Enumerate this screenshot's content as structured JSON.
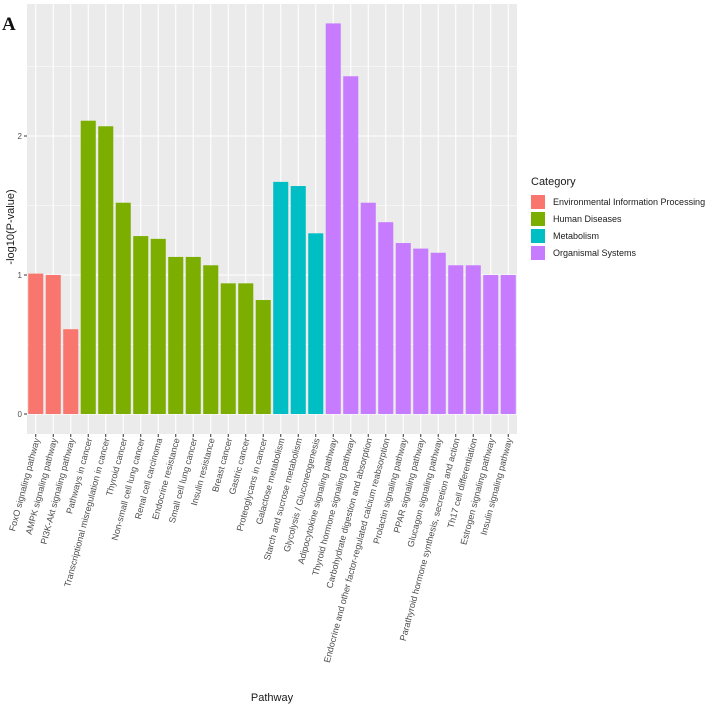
{
  "panel_label": "A",
  "colors": {
    "panel_bg": "#ebebeb",
    "grid": "#ffffff",
    "text": "#4d4d4d"
  },
  "legend": {
    "title": "Category",
    "items": [
      {
        "label": "Environmental Information Processing",
        "color": "#f8766d"
      },
      {
        "label": "Human Diseases",
        "color": "#7cae00"
      },
      {
        "label": "Metabolism",
        "color": "#00bfc4"
      },
      {
        "label": "Organismal Systems",
        "color": "#c77cff"
      }
    ]
  },
  "chart_data": {
    "type": "bar",
    "xlabel": "Pathway",
    "ylabel": "-log10(P-value)",
    "ylim": [
      0,
      2.9
    ],
    "yticks": [
      0,
      1,
      2
    ],
    "grid": true,
    "legend_position": "right",
    "categories": [
      "FoxO signaling pathway",
      "AMPK signaling pathway",
      "PI3K-Akt signaling pathway",
      "Pathways in cancer",
      "Transcriptional misregulation in cancer",
      "Thyroid cancer",
      "Non-small cell lung cancer",
      "Renal cell carcinoma",
      "Endocrine resistance",
      "Small cell lung cancer",
      "Insulin resistance",
      "Breast cancer",
      "Gastric cancer",
      "Proteoglycans in cancer",
      "Galactose metabolism",
      "Starch and sucrose metabolism",
      "Glycolysis / Gluconeogenesis",
      "Adipocytokine signaling pathway",
      "Thyroid hormone signaling pathway",
      "Carbohydrate digestion and absorption",
      "Endocrine and other factor-regulated calcium reabsorption",
      "Prolactin signaling pathway",
      "PPAR signaling pathway",
      "Glucagon signaling pathway",
      "Parathyroid hormone synthesis, secretion and action",
      "Th17 cell differentiation",
      "Estrogen signaling pathway",
      "Insulin signaling pathway"
    ],
    "values": [
      1.01,
      1.0,
      0.61,
      2.11,
      2.07,
      1.52,
      1.28,
      1.26,
      1.13,
      1.13,
      1.07,
      0.94,
      0.94,
      0.82,
      1.67,
      1.64,
      1.3,
      2.81,
      2.43,
      1.52,
      1.38,
      1.23,
      1.19,
      1.16,
      1.07,
      1.07,
      1.0,
      1.0
    ],
    "groups": [
      "Environmental Information Processing",
      "Environmental Information Processing",
      "Environmental Information Processing",
      "Human Diseases",
      "Human Diseases",
      "Human Diseases",
      "Human Diseases",
      "Human Diseases",
      "Human Diseases",
      "Human Diseases",
      "Human Diseases",
      "Human Diseases",
      "Human Diseases",
      "Human Diseases",
      "Metabolism",
      "Metabolism",
      "Metabolism",
      "Organismal Systems",
      "Organismal Systems",
      "Organismal Systems",
      "Organismal Systems",
      "Organismal Systems",
      "Organismal Systems",
      "Organismal Systems",
      "Organismal Systems",
      "Organismal Systems",
      "Organismal Systems",
      "Organismal Systems"
    ]
  }
}
